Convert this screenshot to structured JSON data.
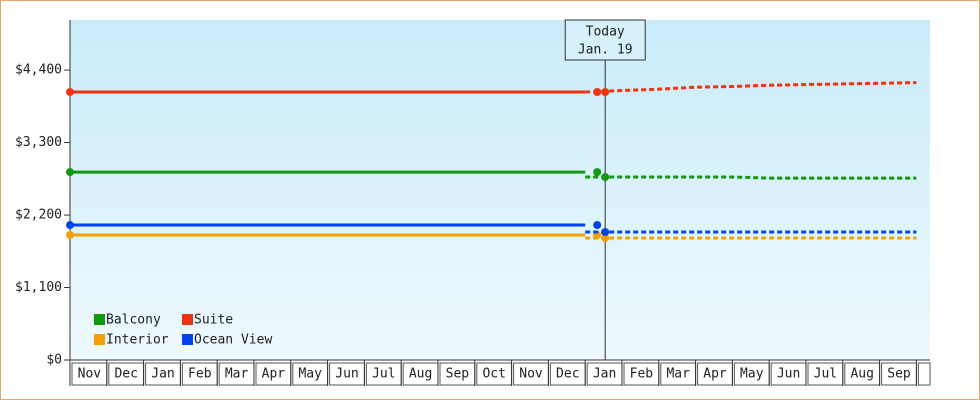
{
  "chart_data": {
    "type": "line",
    "categories": [
      "Nov",
      "Dec",
      "Jan",
      "Feb",
      "Mar",
      "Apr",
      "May",
      "Jun",
      "Jul",
      "Aug",
      "Sep",
      "Oct",
      "Nov",
      "Dec",
      "Jan",
      "Feb",
      "Mar",
      "Apr",
      "May",
      "Jun",
      "Jul",
      "Aug",
      "Sep",
      null
    ],
    "ylim": [
      0,
      5160
    ],
    "yticks": [
      {
        "value": 0,
        "label": "$0"
      },
      {
        "value": 1100,
        "label": "$1,100"
      },
      {
        "value": 2200,
        "label": "$2,200"
      },
      {
        "value": 3300,
        "label": "$3,300"
      },
      {
        "value": 4400,
        "label": "$4,400"
      }
    ],
    "annotation": {
      "title": "Today",
      "date": "Jan. 19"
    },
    "series": [
      {
        "name": "Balcony",
        "color": "#119911",
        "values": [
          2852,
          2852,
          2852,
          2852,
          2852,
          2852,
          2852,
          2852,
          2852,
          2852,
          2852,
          2852,
          2852,
          2852,
          2852,
          null,
          null,
          null,
          null,
          null,
          null,
          null,
          null,
          null
        ],
        "forecast": [
          null,
          null,
          null,
          null,
          null,
          null,
          null,
          null,
          null,
          null,
          null,
          null,
          null,
          null,
          2777,
          2777,
          2777,
          2777,
          2777,
          2760,
          2760,
          2760,
          2760,
          2760
        ]
      },
      {
        "name": "Suite",
        "color": "#ee3311",
        "values": [
          4067,
          4067,
          4067,
          4067,
          4067,
          4067,
          4067,
          4067,
          4067,
          4067,
          4067,
          4067,
          4067,
          4067,
          4067,
          null,
          null,
          null,
          null,
          null,
          null,
          null,
          null,
          null
        ],
        "forecast": [
          null,
          null,
          null,
          null,
          null,
          null,
          null,
          null,
          null,
          null,
          null,
          null,
          null,
          null,
          4067,
          4090,
          4110,
          4140,
          4150,
          4170,
          4180,
          4190,
          4200,
          4210
        ]
      },
      {
        "name": "Interior",
        "color": "#f5a000",
        "values": [
          1897,
          1897,
          1897,
          1897,
          1897,
          1897,
          1897,
          1897,
          1897,
          1897,
          1897,
          1897,
          1897,
          1897,
          1897,
          null,
          null,
          null,
          null,
          null,
          null,
          null,
          null,
          null
        ],
        "forecast": [
          null,
          null,
          null,
          null,
          null,
          null,
          null,
          null,
          null,
          null,
          null,
          null,
          null,
          null,
          1851,
          1851,
          1851,
          1851,
          1851,
          1851,
          1851,
          1851,
          1851,
          1851
        ]
      },
      {
        "name": "Ocean View",
        "color": "#0044ee",
        "values": [
          2048,
          2048,
          2048,
          2048,
          2048,
          2048,
          2048,
          2048,
          2048,
          2048,
          2048,
          2048,
          2048,
          2048,
          2048,
          null,
          null,
          null,
          null,
          null,
          null,
          null,
          null,
          null
        ],
        "forecast": [
          null,
          null,
          null,
          null,
          null,
          null,
          null,
          null,
          null,
          null,
          null,
          null,
          null,
          null,
          1942,
          1942,
          1942,
          1942,
          1942,
          1942,
          1942,
          1942,
          1942,
          1942
        ]
      }
    ]
  }
}
